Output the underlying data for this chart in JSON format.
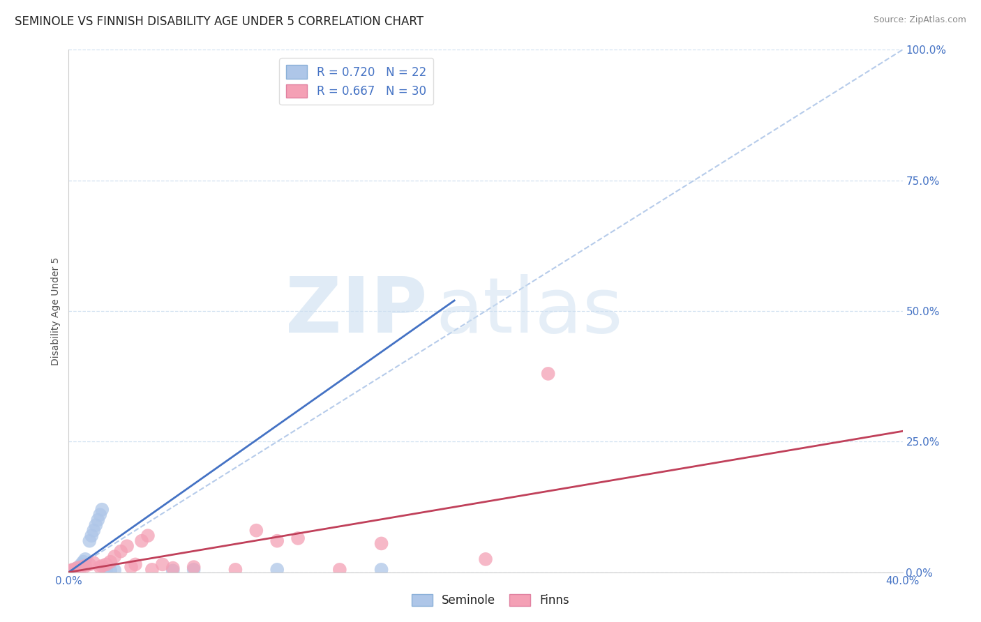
{
  "title": "SEMINOLE VS FINNISH DISABILITY AGE UNDER 5 CORRELATION CHART",
  "source_text": "Source: ZipAtlas.com",
  "ylabel": "Disability Age Under 5",
  "watermark_zip": "ZIP",
  "watermark_atlas": "atlas",
  "xlim": [
    0.0,
    0.4
  ],
  "ylim": [
    0.0,
    1.0
  ],
  "xticks": [
    0.0,
    0.1,
    0.2,
    0.3,
    0.4
  ],
  "xtick_labels": [
    "0.0%",
    "",
    "",
    "",
    "40.0%"
  ],
  "ytick_labels": [
    "0.0%",
    "25.0%",
    "50.0%",
    "75.0%",
    "100.0%"
  ],
  "yticks": [
    0.0,
    0.25,
    0.5,
    0.75,
    1.0
  ],
  "seminole_R": 0.72,
  "seminole_N": 22,
  "finns_R": 0.667,
  "finns_N": 30,
  "seminole_color": "#aec6e8",
  "seminole_line_color": "#4472c4",
  "finns_color": "#f4a0b5",
  "finns_line_color": "#c0405a",
  "diagonal_color": "#aec6e8",
  "background_color": "#ffffff",
  "grid_color": "#d0e0f0",
  "seminole_points_x": [
    0.001,
    0.002,
    0.003,
    0.004,
    0.005,
    0.006,
    0.007,
    0.008,
    0.01,
    0.011,
    0.012,
    0.013,
    0.014,
    0.015,
    0.016,
    0.018,
    0.02,
    0.022,
    0.05,
    0.06,
    0.1,
    0.15
  ],
  "seminole_points_y": [
    0.002,
    0.004,
    0.005,
    0.008,
    0.01,
    0.015,
    0.02,
    0.025,
    0.06,
    0.07,
    0.08,
    0.09,
    0.1,
    0.11,
    0.12,
    0.005,
    0.003,
    0.004,
    0.003,
    0.005,
    0.005,
    0.005
  ],
  "finns_points_x": [
    0.001,
    0.002,
    0.004,
    0.006,
    0.008,
    0.01,
    0.012,
    0.015,
    0.016,
    0.018,
    0.02,
    0.022,
    0.025,
    0.028,
    0.03,
    0.032,
    0.035,
    0.038,
    0.04,
    0.045,
    0.05,
    0.06,
    0.08,
    0.09,
    0.1,
    0.11,
    0.13,
    0.15,
    0.2,
    0.23
  ],
  "finns_points_y": [
    0.003,
    0.005,
    0.008,
    0.01,
    0.012,
    0.015,
    0.018,
    0.01,
    0.012,
    0.015,
    0.02,
    0.03,
    0.04,
    0.05,
    0.01,
    0.015,
    0.06,
    0.07,
    0.005,
    0.015,
    0.008,
    0.01,
    0.005,
    0.08,
    0.06,
    0.065,
    0.005,
    0.055,
    0.025,
    0.38
  ],
  "seminole_line_x": [
    0.0,
    0.185
  ],
  "seminole_line_y": [
    0.0,
    0.52
  ],
  "finns_line_x": [
    0.0,
    0.4
  ],
  "finns_line_y": [
    0.0,
    0.27
  ],
  "diagonal_line_x": [
    0.0,
    0.4
  ],
  "diagonal_line_y": [
    0.0,
    1.0
  ],
  "title_fontsize": 12,
  "axis_label_fontsize": 10,
  "tick_fontsize": 11,
  "legend_fontsize": 12,
  "source_fontsize": 9
}
